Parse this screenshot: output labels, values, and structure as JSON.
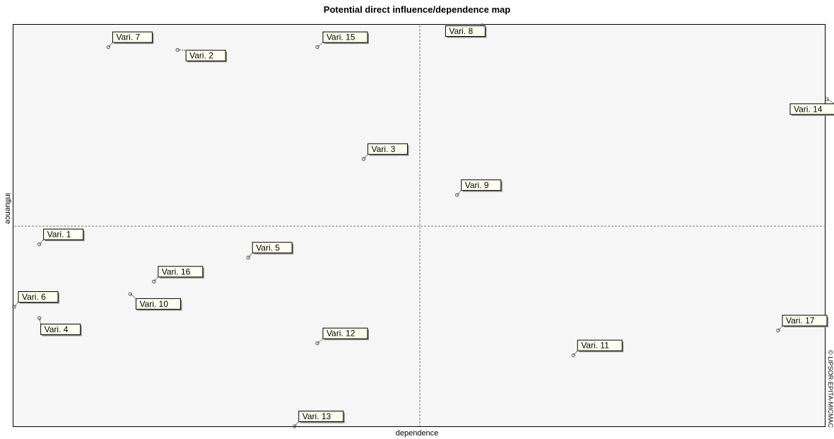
{
  "chart_data": {
    "type": "scatter",
    "title": "Potential direct influence/dependence map",
    "xlabel": "dependence",
    "ylabel": "influence",
    "copyright": "© LIPSOR-EPITA-MICMAC",
    "grid": false,
    "points": [
      {
        "label": "Vari. 7",
        "x": 0.116,
        "y": 0.946
      },
      {
        "label": "Vari. 2",
        "x": 0.201,
        "y": 0.939
      },
      {
        "label": "Vari. 15",
        "x": 0.373,
        "y": 0.946
      },
      {
        "label": "Vari. 8",
        "x": 0.576,
        "y": 1.0
      },
      {
        "label": "Vari. 14",
        "x": 1.0,
        "y": 0.816
      },
      {
        "label": "Vari. 3",
        "x": 0.43,
        "y": 0.667
      },
      {
        "label": "Vari. 9",
        "x": 0.545,
        "y": 0.577
      },
      {
        "label": "Vari. 1",
        "x": 0.031,
        "y": 0.454
      },
      {
        "label": "Vari. 5",
        "x": 0.288,
        "y": 0.421
      },
      {
        "label": "Vari. 16",
        "x": 0.172,
        "y": 0.361
      },
      {
        "label": "Vari. 6",
        "x": 0.0,
        "y": 0.298
      },
      {
        "label": "Vari. 10",
        "x": 0.143,
        "y": 0.33
      },
      {
        "label": "Vari. 4",
        "x": 0.031,
        "y": 0.27
      },
      {
        "label": "Vari. 12",
        "x": 0.373,
        "y": 0.207
      },
      {
        "label": "Vari. 17",
        "x": 0.94,
        "y": 0.239
      },
      {
        "label": "Vari. 11",
        "x": 0.688,
        "y": 0.177
      },
      {
        "label": "Vari. 13",
        "x": 0.345,
        "y": 0.0
      }
    ],
    "colors": {
      "plot_background": "#f6f6f6",
      "label_box": "#fffff0",
      "label_border": "#000000",
      "point": "#555555",
      "divider": "#777777"
    }
  }
}
